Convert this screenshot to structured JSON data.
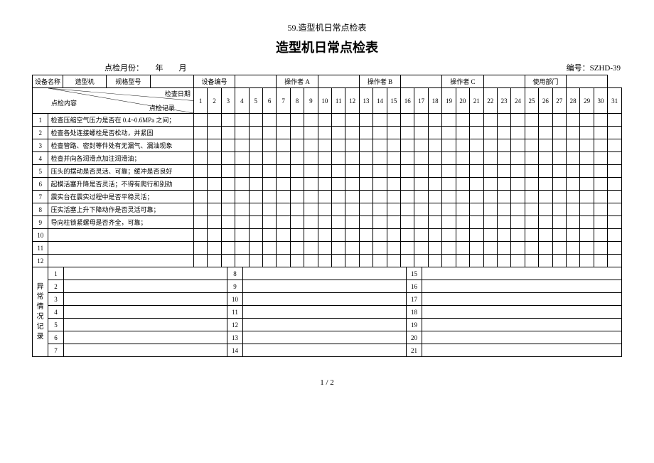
{
  "page_header": "59.造型机日常点检表",
  "main_title": "造型机日常点检表",
  "meta": {
    "month_label": "点检月份：　　年　　月",
    "doc_no": "编号：SZHD-39"
  },
  "header_labels": {
    "equip_name": "设备名称",
    "equip_name_val": "造型机",
    "spec_model": "规格型号",
    "equip_no": "设备编号",
    "op_a": "操作者 A",
    "op_b": "操作者 B",
    "op_c": "操作者 C",
    "dept": "使用部门",
    "check_date": "检查日期",
    "check_content": "点检内容",
    "check_record": "点检记录"
  },
  "days": [
    "1",
    "2",
    "3",
    "4",
    "5",
    "6",
    "7",
    "8",
    "9",
    "10",
    "11",
    "12",
    "13",
    "14",
    "15",
    "16",
    "17",
    "18",
    "19",
    "20",
    "21",
    "22",
    "23",
    "24",
    "25",
    "26",
    "27",
    "28",
    "29",
    "30",
    "31"
  ],
  "items": [
    {
      "n": "1",
      "t": "检查压缩空气压力是否在 0.4~0.6MPa 之间；"
    },
    {
      "n": "2",
      "t": "检查各处连接螺栓是否松动，并紧固"
    },
    {
      "n": "3",
      "t": "检查管路、密封等件处有无漏气、漏油现象"
    },
    {
      "n": "4",
      "t": "检查并向各润滑点加注润滑油；"
    },
    {
      "n": "5",
      "t": "压头的摆动是否灵活、可靠；缓冲是否良好"
    },
    {
      "n": "6",
      "t": "起模活塞升降是否灵活；不得有爬行和别劲"
    },
    {
      "n": "7",
      "t": "震实台在震实过程中是否平稳灵活；"
    },
    {
      "n": "8",
      "t": "压实活塞上升下降动作是否灵活可靠；"
    },
    {
      "n": "9",
      "t": "导向柱锁紧螺母是否齐全，可靠；"
    },
    {
      "n": "10",
      "t": ""
    },
    {
      "n": "11",
      "t": ""
    },
    {
      "n": "12",
      "t": ""
    }
  ],
  "abnormal": {
    "label": "异常情况记录",
    "col1": [
      "1",
      "2",
      "3",
      "4",
      "5",
      "6",
      "7"
    ],
    "col2": [
      "8",
      "9",
      "10",
      "11",
      "12",
      "13",
      "14"
    ],
    "col3": [
      "15",
      "16",
      "17",
      "18",
      "19",
      "20",
      "21"
    ]
  },
  "page_num": "1 / 2"
}
